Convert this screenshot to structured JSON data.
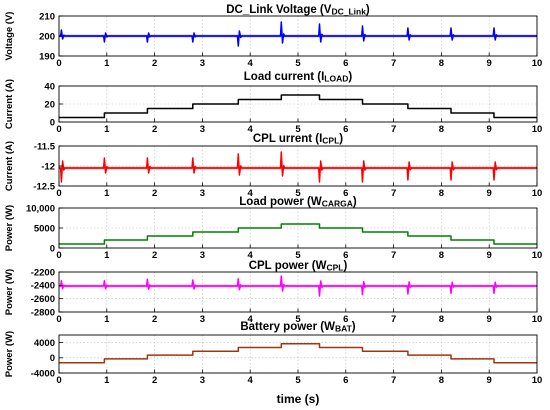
{
  "chart_data": [
    {
      "type": "line",
      "title_main": "DC_Link Voltage (V",
      "title_sub": "DC_Link",
      "title_end": ")",
      "ylabel": "Voltage (V)",
      "xlabel": "",
      "xlim": [
        0,
        10
      ],
      "ylim": [
        190,
        210
      ],
      "yticks": [
        190,
        200,
        210
      ],
      "grid": true,
      "color": "#0000ff",
      "series": [
        {
          "x": [
            0,
            10
          ],
          "y": [
            200,
            200
          ],
          "transients": [
            {
              "t": 0.05,
              "amp": 3
            },
            {
              "t": 0.95,
              "amp": -3
            },
            {
              "t": 1.85,
              "amp": -3
            },
            {
              "t": 2.8,
              "amp": -3
            },
            {
              "t": 3.75,
              "amp": -5
            },
            {
              "t": 4.65,
              "amp": 7
            },
            {
              "t": 5.45,
              "amp": 6
            },
            {
              "t": 6.35,
              "amp": 5
            },
            {
              "t": 7.3,
              "amp": 4
            },
            {
              "t": 8.2,
              "amp": 4
            },
            {
              "t": 9.1,
              "amp": 4
            }
          ]
        }
      ]
    },
    {
      "type": "line",
      "title_main": "Load current (I",
      "title_sub": "LOAD",
      "title_end": ")",
      "ylabel": "Current (A)",
      "xlim": [
        0,
        10
      ],
      "ylim": [
        0,
        40
      ],
      "yticks": [
        0,
        20,
        40
      ],
      "grid": true,
      "color": "#000000",
      "series": [
        {
          "x": [
            0,
            0.95,
            0.95,
            1.85,
            1.85,
            2.8,
            2.8,
            3.75,
            3.75,
            4.65,
            4.65,
            5.45,
            5.45,
            6.35,
            6.35,
            7.3,
            7.3,
            8.2,
            8.2,
            9.1,
            9.1,
            10
          ],
          "y": [
            5,
            5,
            10,
            10,
            15,
            15,
            20,
            20,
            25,
            25,
            30,
            30,
            25,
            25,
            20,
            20,
            15,
            15,
            10,
            10,
            5,
            5
          ]
        }
      ]
    },
    {
      "type": "line",
      "title_main": "CPL urrent (I",
      "title_sub": "CPL",
      "title_end": ")",
      "ylabel": "Current (A)",
      "xlim": [
        0,
        10
      ],
      "ylim": [
        -12.5,
        -11.5
      ],
      "yticks": [
        -12.5,
        -12,
        -11.5
      ],
      "grid": true,
      "color": "#ff0000",
      "series": [
        {
          "x": [
            0,
            10
          ],
          "y": [
            -12.05,
            -12.05
          ],
          "transients": [
            {
              "t": 0.05,
              "amp": -0.35
            },
            {
              "t": 0.95,
              "amp": 0.25
            },
            {
              "t": 1.85,
              "amp": 0.25
            },
            {
              "t": 2.8,
              "amp": 0.25
            },
            {
              "t": 3.75,
              "amp": 0.35
            },
            {
              "t": 4.65,
              "amp": 0.4
            },
            {
              "t": 5.45,
              "amp": -0.35
            },
            {
              "t": 6.35,
              "amp": -0.35
            },
            {
              "t": 7.3,
              "amp": -0.3
            },
            {
              "t": 8.2,
              "amp": -0.3
            },
            {
              "t": 9.1,
              "amp": -0.3
            }
          ]
        }
      ]
    },
    {
      "type": "line",
      "title_main": "Load power (W",
      "title_sub": "CARGA",
      "title_end": ")",
      "ylabel": "Power (W)",
      "xlim": [
        0,
        10
      ],
      "ylim": [
        0,
        10000
      ],
      "yticks": [
        0,
        5000,
        10000
      ],
      "ytick_labels": [
        "0",
        "5000",
        "10,000"
      ],
      "grid": true,
      "color": "#008000",
      "series": [
        {
          "x": [
            0,
            0.95,
            0.95,
            1.85,
            1.85,
            2.8,
            2.8,
            3.75,
            3.75,
            4.65,
            4.65,
            5.45,
            5.45,
            6.35,
            6.35,
            7.3,
            7.3,
            8.2,
            8.2,
            9.1,
            9.1,
            10
          ],
          "y": [
            1000,
            1000,
            2000,
            2000,
            3000,
            3000,
            4000,
            4000,
            5000,
            5000,
            6000,
            6000,
            5000,
            5000,
            4000,
            4000,
            3000,
            3000,
            2000,
            2000,
            1000,
            1000
          ]
        }
      ]
    },
    {
      "type": "line",
      "title_main": "CPL power (W",
      "title_sub": "CPL",
      "title_end": ")",
      "ylabel": "Power (W)",
      "xlim": [
        0,
        10
      ],
      "ylim": [
        -2800,
        -2200
      ],
      "yticks": [
        -2800,
        -2600,
        -2400,
        -2200
      ],
      "grid": true,
      "color": "#ff00ff",
      "series": [
        {
          "x": [
            0,
            10
          ],
          "y": [
            -2410,
            -2410
          ],
          "transients": [
            {
              "t": 0.05,
              "amp": 80
            },
            {
              "t": 0.95,
              "amp": 80
            },
            {
              "t": 1.85,
              "amp": 100
            },
            {
              "t": 2.8,
              "amp": 90
            },
            {
              "t": 3.75,
              "amp": 110
            },
            {
              "t": 4.65,
              "amp": 150
            },
            {
              "t": 5.45,
              "amp": -150
            },
            {
              "t": 6.35,
              "amp": -130
            },
            {
              "t": 7.3,
              "amp": -120
            },
            {
              "t": 8.2,
              "amp": -110
            },
            {
              "t": 9.1,
              "amp": -110
            }
          ]
        }
      ]
    },
    {
      "type": "line",
      "title_main": "Battery power (W",
      "title_sub": "BAT",
      "title_end": ")",
      "ylabel": "Power (W)",
      "xlabel": "time (s)",
      "xlim": [
        0,
        10
      ],
      "ylim": [
        -4000,
        6000
      ],
      "yticks": [
        -4000,
        0,
        4000
      ],
      "grid": true,
      "color": "#a0350f",
      "series": [
        {
          "x": [
            0,
            0.95,
            0.95,
            1.85,
            1.85,
            2.8,
            2.8,
            3.75,
            3.75,
            4.65,
            4.65,
            5.45,
            5.45,
            6.35,
            6.35,
            7.3,
            7.3,
            8.2,
            8.2,
            9.1,
            9.1,
            10
          ],
          "y": [
            -1300,
            -1300,
            -300,
            -300,
            700,
            700,
            1700,
            1700,
            2700,
            2700,
            3700,
            3700,
            2700,
            2700,
            1700,
            1700,
            700,
            700,
            -300,
            -300,
            -1300,
            -1300
          ]
        }
      ]
    }
  ]
}
